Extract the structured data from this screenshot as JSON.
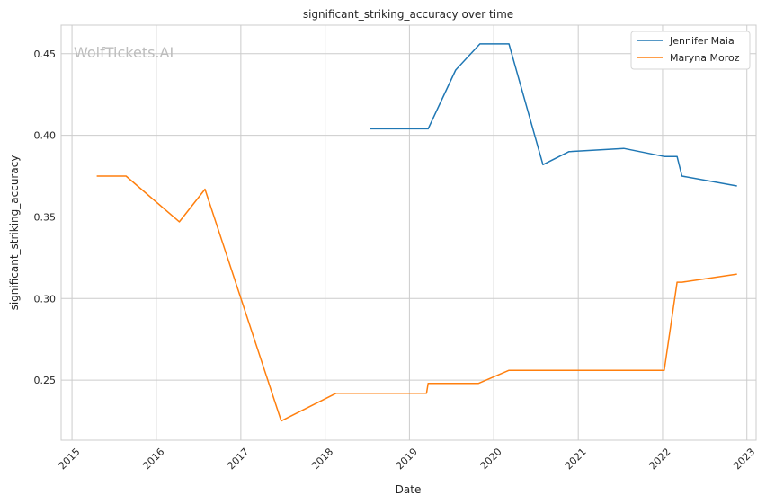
{
  "chart_data": {
    "type": "line",
    "title": "significant_striking_accuracy over time",
    "xlabel": "Date",
    "ylabel": "significant_striking_accuracy",
    "watermark": "WolfTickets.AI",
    "x_type": "date",
    "xlim": [
      "2014-11-15",
      "2023-02-10"
    ],
    "ylim": [
      0.2132,
      0.4675
    ],
    "x_ticks": [
      "2015",
      "2016",
      "2017",
      "2018",
      "2019",
      "2020",
      "2021",
      "2022",
      "2023"
    ],
    "y_ticks": [
      "0.25",
      "0.30",
      "0.35",
      "0.40",
      "0.45"
    ],
    "grid": true,
    "legend_position": "top-right",
    "series": [
      {
        "name": "Jennifer Maia",
        "color": "#1f77b4",
        "points": [
          {
            "x": "2018-07-15",
            "y": 0.404
          },
          {
            "x": "2019-03-23",
            "y": 0.404
          },
          {
            "x": "2019-07-20",
            "y": 0.44
          },
          {
            "x": "2019-11-02",
            "y": 0.456
          },
          {
            "x": "2020-03-07",
            "y": 0.456
          },
          {
            "x": "2020-08-01",
            "y": 0.382
          },
          {
            "x": "2020-11-21",
            "y": 0.39
          },
          {
            "x": "2021-07-17",
            "y": 0.392
          },
          {
            "x": "2022-01-08",
            "y": 0.387
          },
          {
            "x": "2022-03-05",
            "y": 0.387
          },
          {
            "x": "2022-03-26",
            "y": 0.375
          },
          {
            "x": "2022-11-19",
            "y": 0.369
          }
        ]
      },
      {
        "name": "Maryna Moroz",
        "color": "#ff7f0e",
        "points": [
          {
            "x": "2015-04-18",
            "y": 0.375
          },
          {
            "x": "2015-08-23",
            "y": 0.375
          },
          {
            "x": "2016-04-10",
            "y": 0.347
          },
          {
            "x": "2016-07-30",
            "y": 0.367
          },
          {
            "x": "2017-06-25",
            "y": 0.225
          },
          {
            "x": "2018-02-18",
            "y": 0.242
          },
          {
            "x": "2019-03-16",
            "y": 0.242
          },
          {
            "x": "2019-03-23",
            "y": 0.248
          },
          {
            "x": "2019-10-26",
            "y": 0.248
          },
          {
            "x": "2020-03-07",
            "y": 0.256
          },
          {
            "x": "2022-01-08",
            "y": 0.256
          },
          {
            "x": "2022-03-05",
            "y": 0.31
          },
          {
            "x": "2022-03-26",
            "y": 0.31
          },
          {
            "x": "2022-11-19",
            "y": 0.315
          }
        ]
      }
    ]
  }
}
